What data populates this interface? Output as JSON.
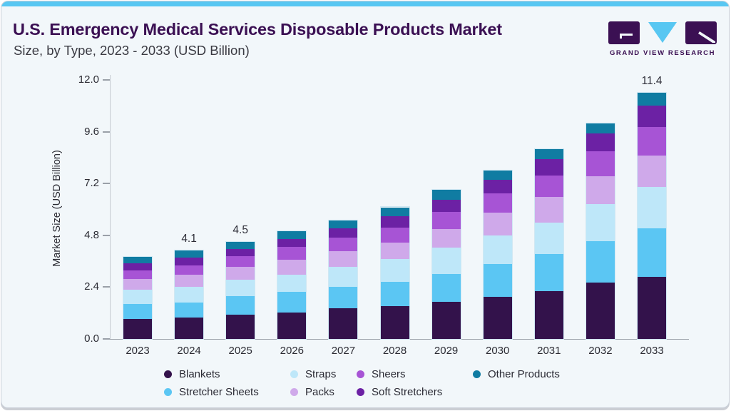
{
  "header": {
    "title": "U.S. Emergency Medical Services Disposable Products Market",
    "subtitle": "Size, by Type, 2023 - 2033 (USD Billion)",
    "logo_text": "GRAND VIEW RESEARCH",
    "logo_colors": {
      "dark": "#3B1053",
      "blue": "#58C7F2"
    }
  },
  "chart_data": {
    "type": "bar",
    "stacked": true,
    "title": "U.S. Emergency Medical Services Disposable Products Market",
    "subtitle": "Size, by Type, 2023 - 2033 (USD Billion)",
    "xlabel": "",
    "ylabel": "Market Size (USD Billion)",
    "ylim": [
      0,
      12
    ],
    "ytick_labels": [
      "0.0",
      "2.4",
      "4.8",
      "7.2",
      "9.6",
      "12.0"
    ],
    "ytick_values": [
      0,
      2.4,
      4.8,
      7.2,
      9.6,
      12.0
    ],
    "grid": false,
    "legend_position": "bottom",
    "categories": [
      "2023",
      "2024",
      "2025",
      "2026",
      "2027",
      "2028",
      "2029",
      "2030",
      "2031",
      "2032",
      "2033"
    ],
    "series": [
      {
        "name": "Blankets",
        "color": "#33124B",
        "values": [
          0.92,
          0.99,
          1.12,
          1.22,
          1.42,
          1.51,
          1.72,
          1.95,
          2.22,
          2.6,
          2.89
        ]
      },
      {
        "name": "Stretcher Sheets",
        "color": "#5BC6F3",
        "values": [
          0.69,
          0.7,
          0.87,
          0.95,
          0.99,
          1.12,
          1.29,
          1.52,
          1.7,
          1.92,
          2.22
        ]
      },
      {
        "name": "Straps",
        "color": "#BEE7F9",
        "values": [
          0.68,
          0.72,
          0.77,
          0.82,
          0.93,
          1.08,
          1.21,
          1.32,
          1.48,
          1.72,
          1.92
        ]
      },
      {
        "name": "Packs",
        "color": "#CFA9EA",
        "values": [
          0.5,
          0.55,
          0.58,
          0.68,
          0.73,
          0.74,
          0.88,
          1.06,
          1.18,
          1.3,
          1.48
        ]
      },
      {
        "name": "Sheers",
        "color": "#A754D5",
        "values": [
          0.4,
          0.45,
          0.5,
          0.58,
          0.63,
          0.72,
          0.8,
          0.9,
          1.0,
          1.14,
          1.32
        ]
      },
      {
        "name": "Soft Stretchers",
        "color": "#6C21A4",
        "values": [
          0.3,
          0.35,
          0.34,
          0.39,
          0.43,
          0.52,
          0.56,
          0.62,
          0.75,
          0.85,
          0.97
        ]
      },
      {
        "name": "Other Products",
        "color": "#107CA2",
        "values": [
          0.31,
          0.34,
          0.32,
          0.36,
          0.37,
          0.41,
          0.44,
          0.43,
          0.47,
          0.47,
          0.6
        ]
      }
    ],
    "totals": [
      3.8,
      4.1,
      4.5,
      5.0,
      5.5,
      6.1,
      6.9,
      7.8,
      8.8,
      10.0,
      11.4
    ],
    "total_labels": [
      {
        "category": "2024",
        "text": "4.1"
      },
      {
        "category": "2025",
        "text": "4.5"
      },
      {
        "category": "2033",
        "text": "11.4"
      }
    ],
    "legend_rows": [
      [
        "Blankets",
        "Straps",
        "Sheers",
        "Other Products"
      ],
      [
        "Stretcher Sheets",
        "Packs",
        "Soft Stretchers"
      ]
    ]
  }
}
